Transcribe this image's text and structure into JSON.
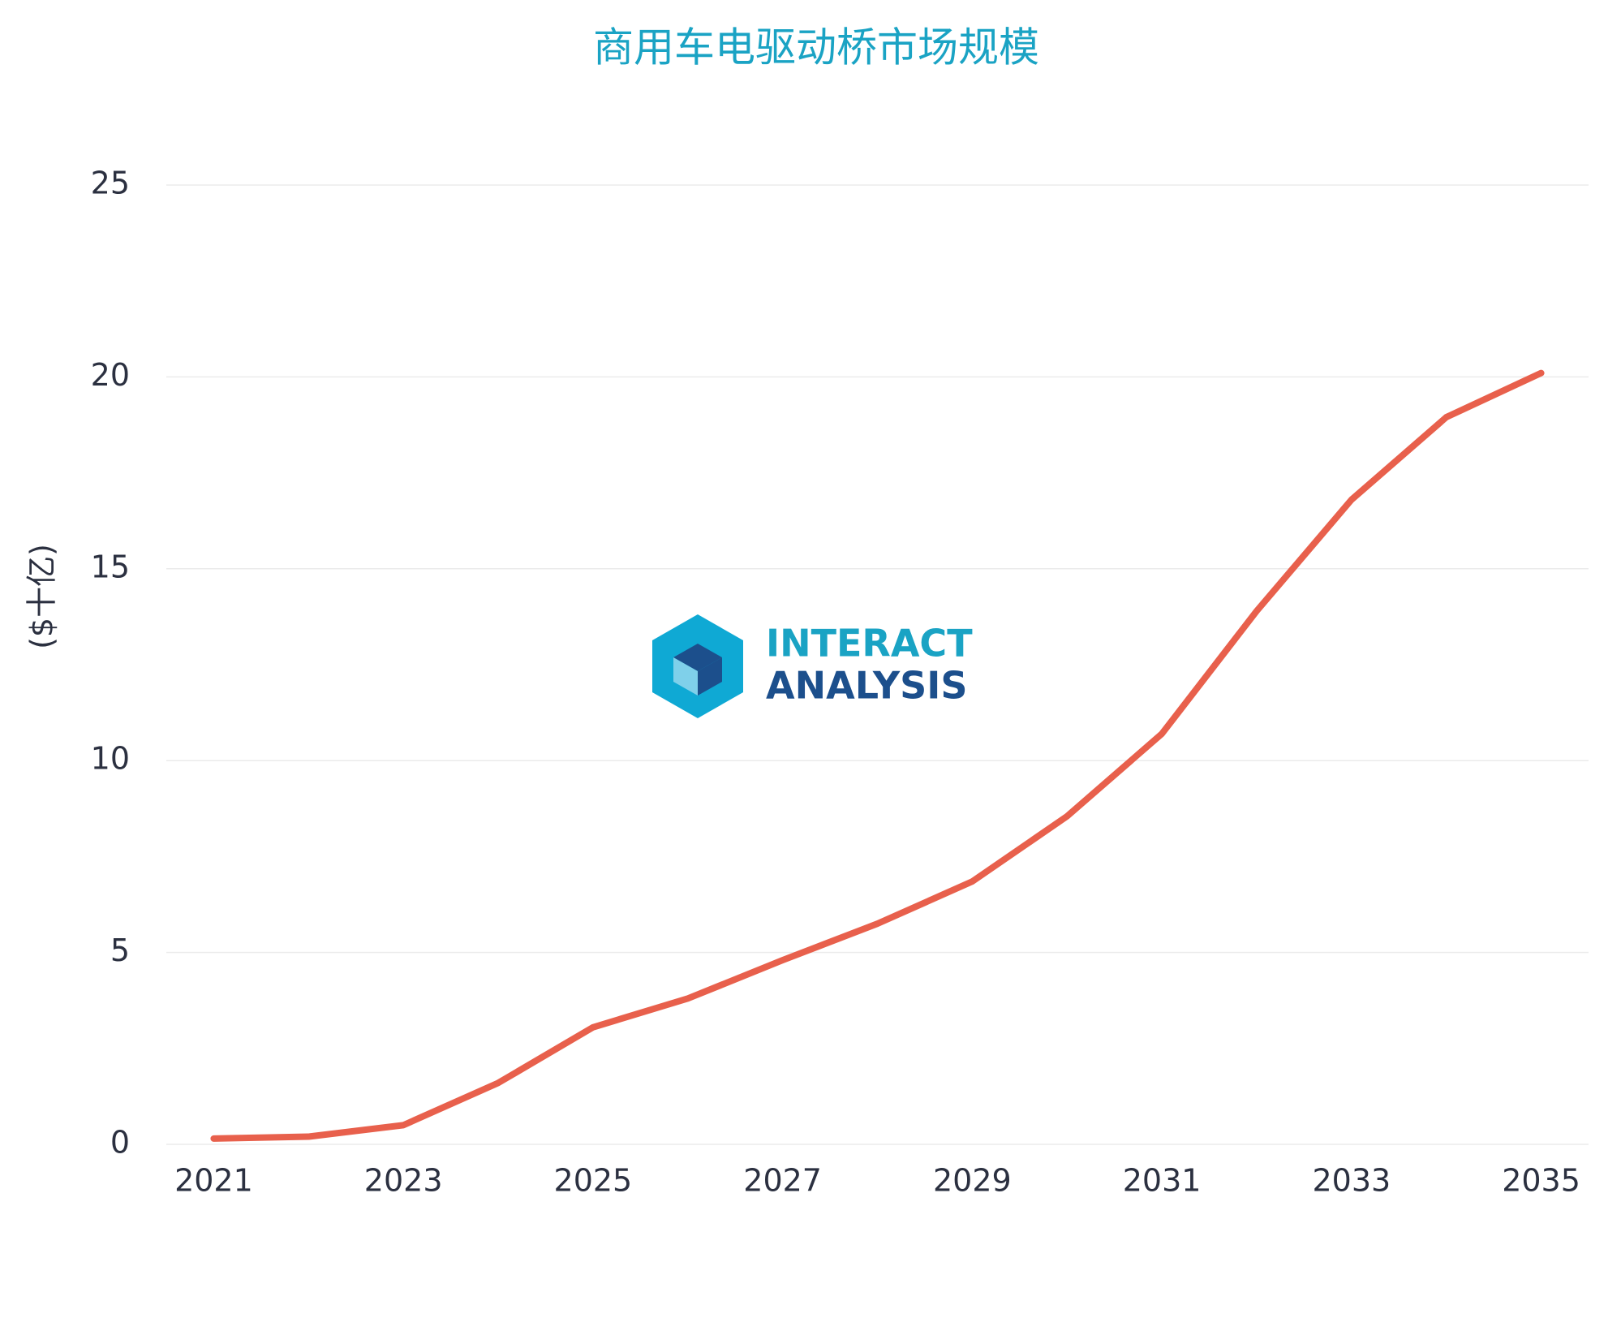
{
  "chart_data": {
    "type": "line",
    "title": "商用车电驱动桥市场规模",
    "y_label": "($十亿)",
    "watermark": [
      "INTERACT",
      "ANALYSIS"
    ],
    "x": [
      2021,
      2022,
      2023,
      2024,
      2025,
      2026,
      2027,
      2028,
      2029,
      2030,
      2031,
      2032,
      2033,
      2034,
      2035
    ],
    "series": [
      {
        "color": "#e8604c",
        "values": [
          0.15,
          0.2,
          0.5,
          1.6,
          3.05,
          3.8,
          4.8,
          5.75,
          6.85,
          8.55,
          10.7,
          13.9,
          16.8,
          18.95,
          20.1
        ]
      }
    ],
    "xlim": [
      2020.5,
      2035.5
    ],
    "xticks": [
      2021,
      2023,
      2025,
      2027,
      2029,
      2031,
      2033,
      2035
    ],
    "ylim": [
      0,
      25
    ],
    "yticks": [
      0,
      5,
      10,
      15,
      20,
      25
    ],
    "grid": true
  }
}
